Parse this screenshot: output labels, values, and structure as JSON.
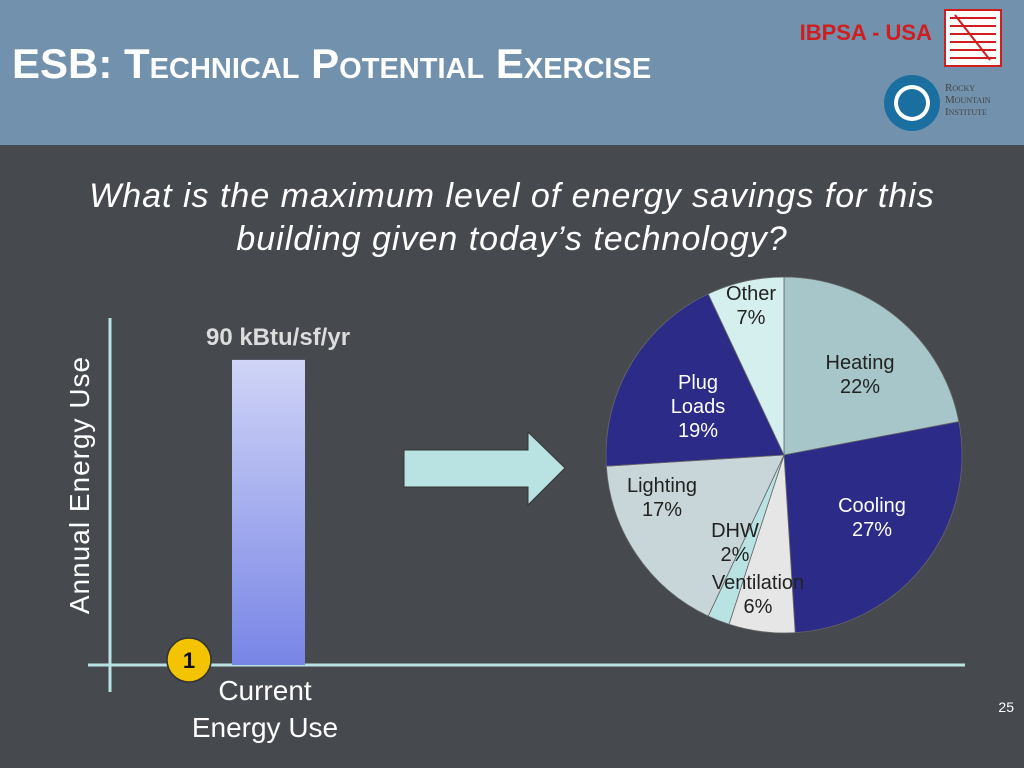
{
  "header": {
    "title": "ESB: Technical Potential Exercise",
    "org": "IBPSA - USA",
    "logo": "Rocky Mountain Institute"
  },
  "question": "What is the maximum level of energy savings for this building given today’s technology?",
  "step": "1",
  "page_number": "25",
  "chart_data": [
    {
      "type": "bar",
      "y_label": "Annual Energy Use",
      "categories": [
        "Current Energy Use"
      ],
      "values": [
        90
      ],
      "value_labels": [
        "90 kBtu/sf/yr"
      ],
      "color": "#7885e6"
    },
    {
      "type": "pie",
      "categories": [
        "Heating",
        "Cooling",
        "Ventilation",
        "DHW",
        "Lighting",
        "Plug Loads",
        "Other"
      ],
      "values": [
        22,
        27,
        6,
        2,
        17,
        19,
        7
      ],
      "value_labels": [
        "22%",
        "27%",
        "6%",
        "2%",
        "17%",
        "19%",
        "7%"
      ],
      "colors": [
        "#a6c6c9",
        "#2c2c88",
        "#e6e6e6",
        "#b9e2e2",
        "#c9d6d9",
        "#2c2c88",
        "#d5eeee"
      ]
    }
  ]
}
